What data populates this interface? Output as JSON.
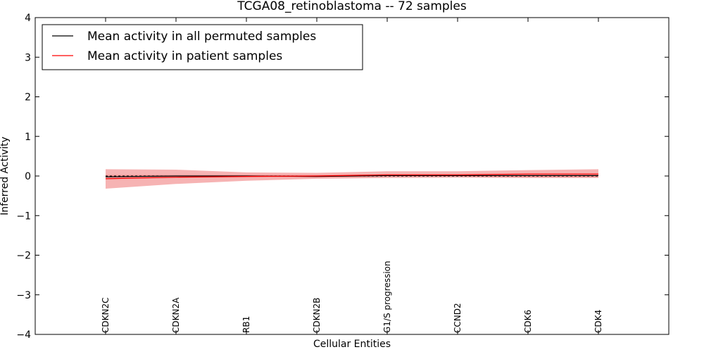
{
  "chart_data": {
    "type": "line",
    "title": "TCGA08_retinoblastoma -- 72 samples",
    "xlabel": "Cellular Entities",
    "ylabel": "Inferred Activity",
    "ylim": [
      -4,
      4
    ],
    "yticks": [
      4,
      3,
      2,
      1,
      0,
      -1,
      -2,
      -3,
      -4
    ],
    "ytick_labels": [
      "4",
      "3",
      "2",
      "1",
      "0",
      "−1",
      "−2",
      "−3",
      "−4"
    ],
    "categories": [
      "CDKN2C",
      "CDKN2A",
      "RB1",
      "CDKN2B",
      "G1/S progression",
      "CCND2",
      "CDK6",
      "CDK4"
    ],
    "colors": {
      "permuted": "#000000",
      "patient": "#ff0000",
      "band": "#f08080"
    },
    "series": [
      {
        "name": "Mean activity in all permuted samples",
        "values": [
          -0.02,
          0.0,
          0.0,
          -0.01,
          0.01,
          0.01,
          0.01,
          0.01
        ],
        "lower": [
          -0.08,
          -0.05,
          -0.04,
          -0.04,
          -0.02,
          -0.02,
          -0.03,
          -0.03
        ],
        "upper": [
          0.03,
          0.03,
          0.03,
          0.03,
          0.04,
          0.04,
          0.04,
          0.04
        ]
      },
      {
        "name": "Mean activity in patient samples",
        "values": [
          -0.07,
          -0.03,
          -0.01,
          0.0,
          0.03,
          0.03,
          0.05,
          0.05
        ],
        "lower": [
          -0.32,
          -0.2,
          -0.12,
          -0.07,
          -0.05,
          -0.04,
          -0.05,
          -0.05
        ],
        "upper": [
          0.17,
          0.16,
          0.09,
          0.08,
          0.12,
          0.12,
          0.15,
          0.17
        ]
      }
    ],
    "legend": {
      "position": "top-left",
      "entries": [
        "Mean activity in all permuted samples",
        "Mean activity in patient samples"
      ]
    }
  }
}
